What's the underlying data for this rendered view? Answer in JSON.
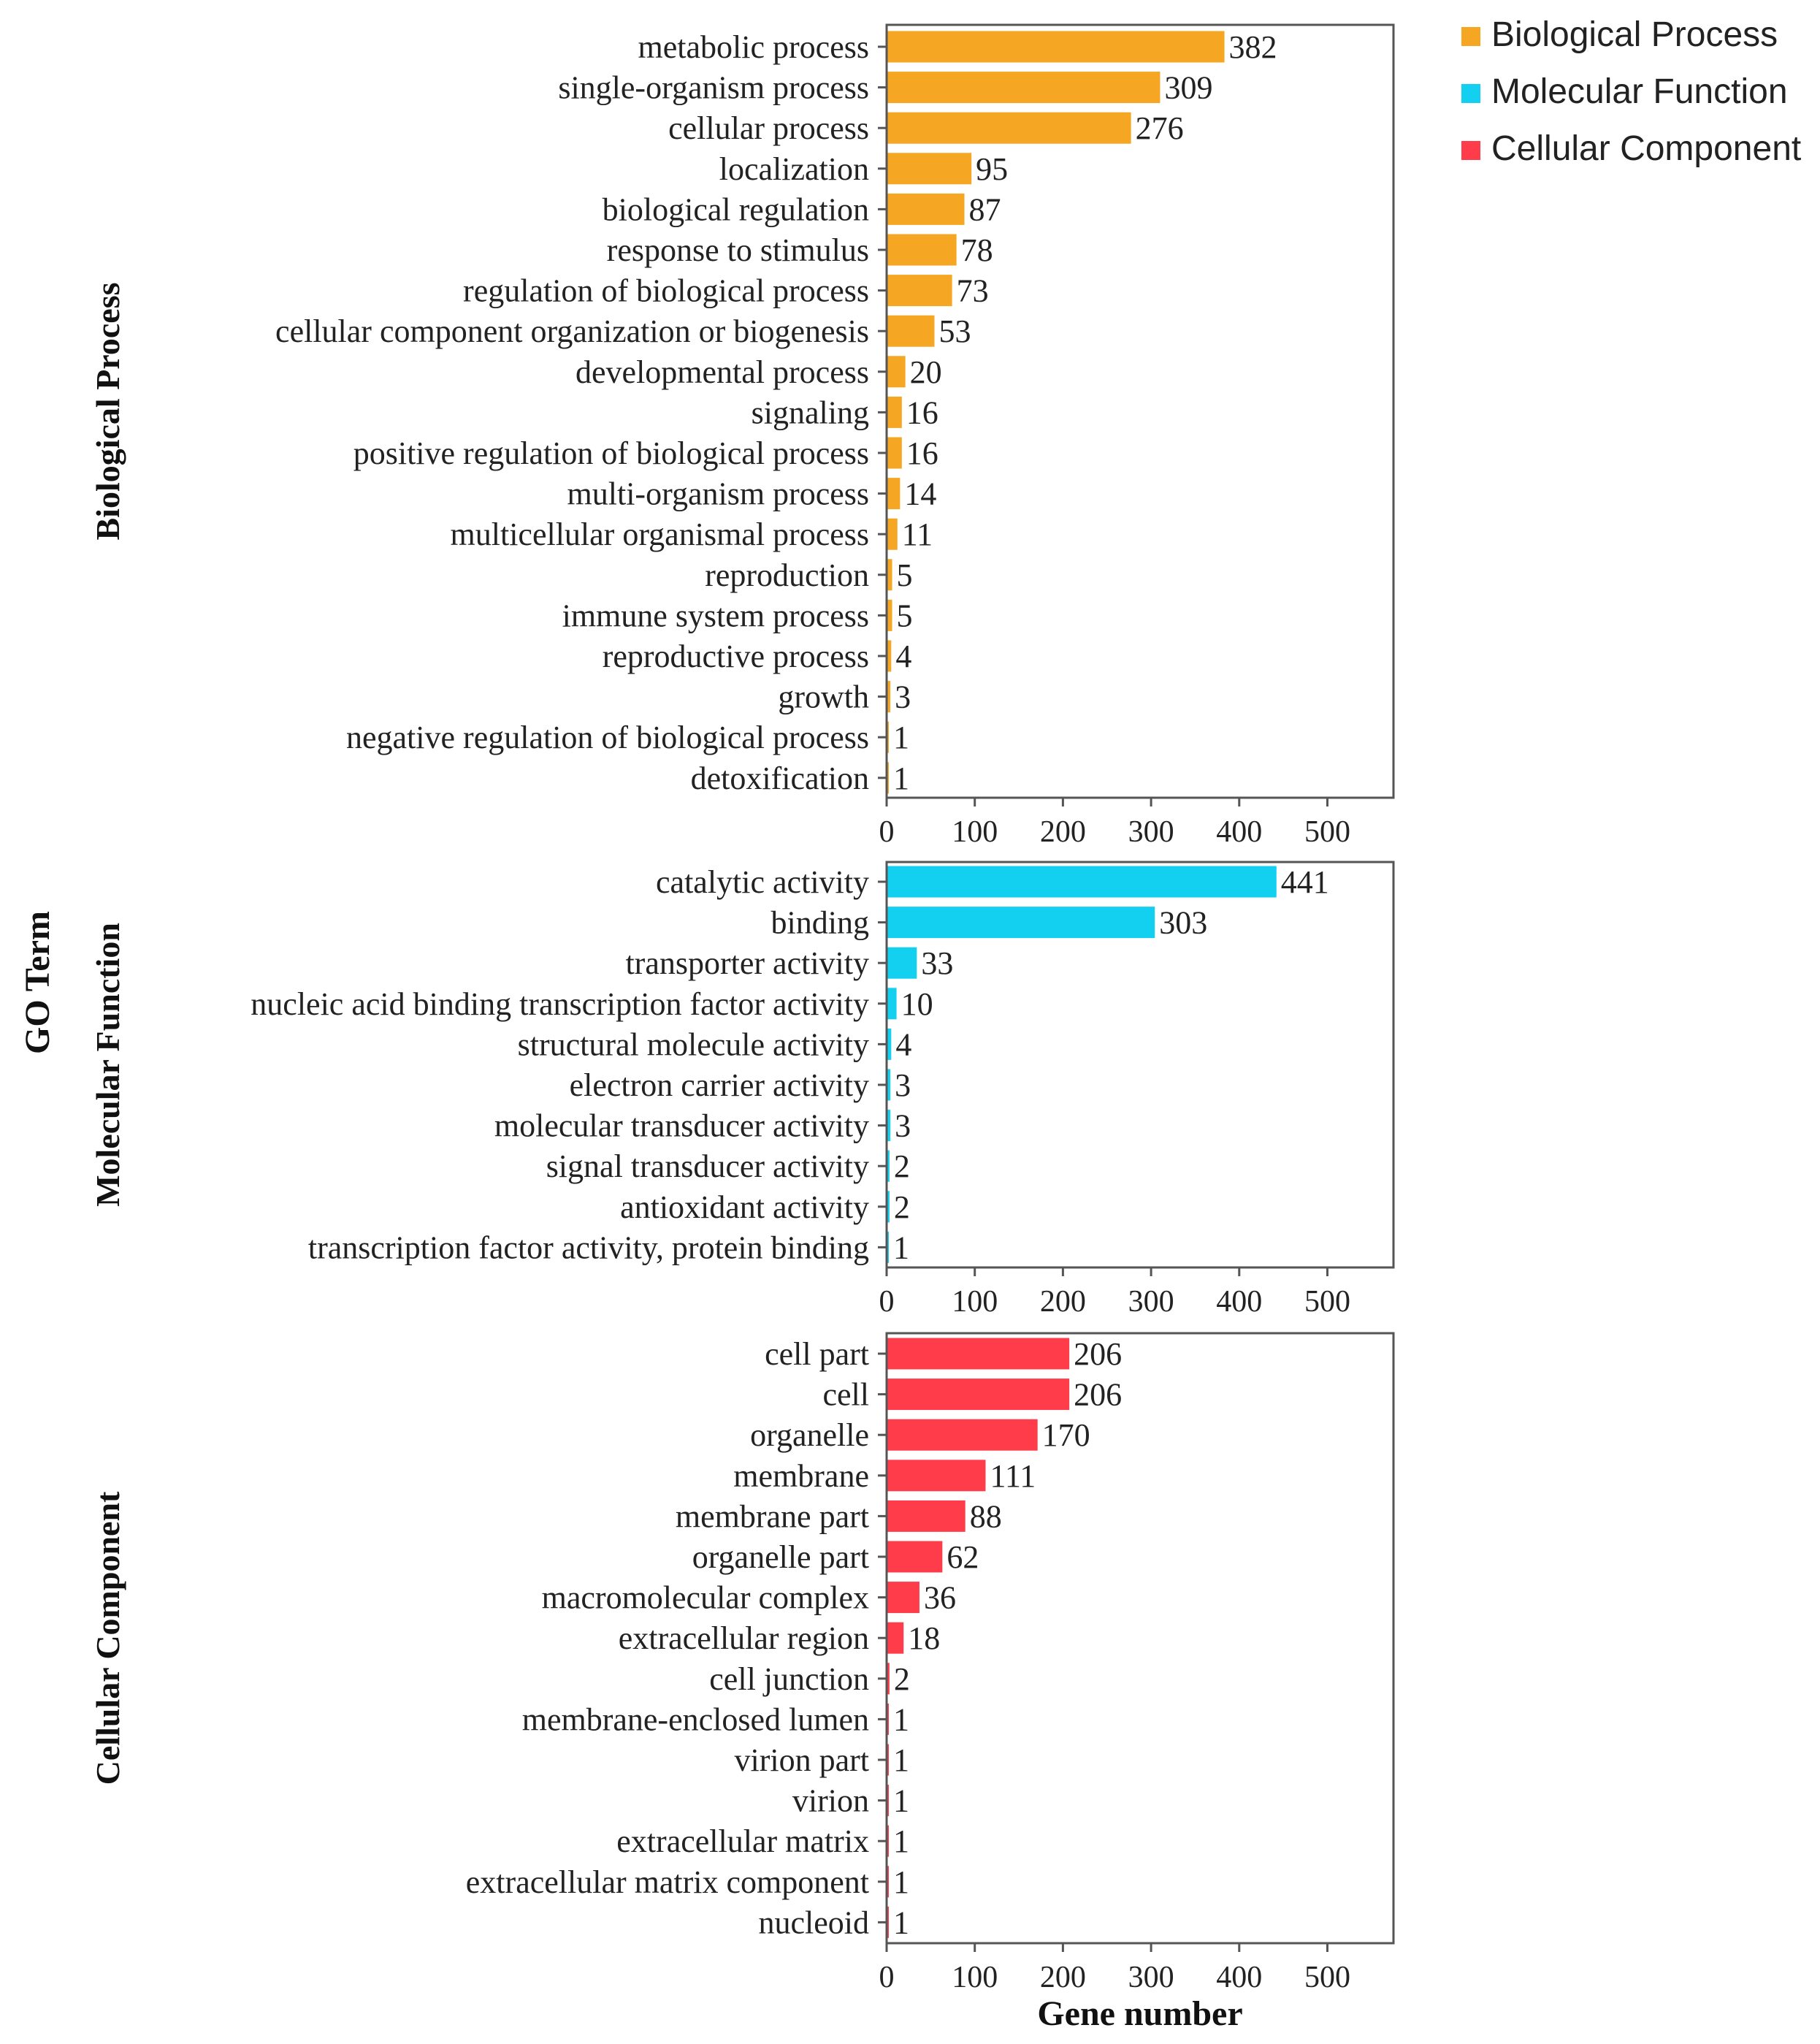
{
  "chart_data": {
    "type": "bar",
    "orientation": "horizontal",
    "xlabel": "Gene number",
    "ylabel": "GO Term",
    "xlim": [
      0,
      575
    ],
    "xticks": [
      "0",
      "100",
      "200",
      "300",
      "400",
      "500"
    ],
    "legend": [
      {
        "label": "Biological Process",
        "color": "#f5a623"
      },
      {
        "label": "Molecular Function",
        "color": "#13d0f0"
      },
      {
        "label": "Cellular Component",
        "color": "#ff3d4a"
      }
    ],
    "legend_position": "top-right",
    "panels": [
      {
        "name": "Biological Process",
        "color": "#f5a623",
        "categories": [
          "metabolic process",
          "single-organism process",
          "cellular process",
          "localization",
          "biological regulation",
          "response to stimulus",
          "regulation of biological process",
          "cellular component organization or biogenesis",
          "developmental process",
          "signaling",
          "positive regulation of biological process",
          "multi-organism process",
          "multicellular organismal process",
          "reproduction",
          "immune system process",
          "reproductive process",
          "growth",
          "negative regulation of biological process",
          "detoxification"
        ],
        "values": [
          382,
          309,
          276,
          95,
          87,
          78,
          73,
          53,
          20,
          16,
          16,
          14,
          11,
          5,
          5,
          4,
          3,
          1,
          1
        ]
      },
      {
        "name": "Molecular Function",
        "color": "#13d0f0",
        "categories": [
          "catalytic activity",
          "binding",
          "transporter activity",
          "nucleic acid binding transcription factor activity",
          "structural molecule activity",
          "electron carrier activity",
          "molecular transducer activity",
          "signal transducer activity",
          "antioxidant activity",
          "transcription factor activity, protein binding"
        ],
        "values": [
          441,
          303,
          33,
          10,
          4,
          3,
          3,
          2,
          2,
          1
        ]
      },
      {
        "name": "Cellular Component",
        "color": "#ff3d4a",
        "categories": [
          "cell part",
          "cell",
          "organelle",
          "membrane",
          "membrane part",
          "organelle part",
          "macromolecular complex",
          "extracellular region",
          "cell junction",
          "membrane-enclosed lumen",
          "virion part",
          "virion",
          "extracellular matrix",
          "extracellular matrix component",
          "nucleoid"
        ],
        "values": [
          206,
          206,
          170,
          111,
          88,
          62,
          36,
          18,
          2,
          1,
          1,
          1,
          1,
          1,
          1
        ]
      }
    ]
  }
}
